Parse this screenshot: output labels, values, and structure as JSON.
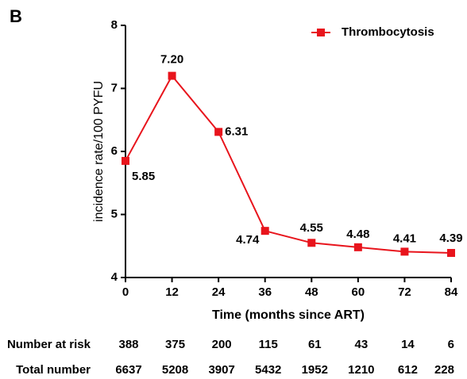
{
  "panel_label": "B",
  "chart_data": {
    "type": "line",
    "x_label": "Time (months since ART)",
    "y_label": "incidence rate/100 PYFU",
    "x": [
      0,
      12,
      24,
      36,
      48,
      60,
      72,
      84
    ],
    "series": [
      {
        "name": "Thrombocytosis",
        "color": "#e8141c",
        "values": [
          5.85,
          7.2,
          6.31,
          4.74,
          4.55,
          4.48,
          4.41,
          4.39
        ],
        "value_labels": [
          "5.85",
          "7.20",
          "6.31",
          "4.74",
          "4.55",
          "4.48",
          "4.41",
          "4.39"
        ]
      }
    ],
    "xlim": [
      0,
      84
    ],
    "xticks": [
      0,
      12,
      24,
      36,
      48,
      60,
      72,
      84
    ],
    "ylim": [
      4,
      8
    ],
    "yticks": [
      4,
      5,
      6,
      7,
      8
    ],
    "legend": "top-right"
  },
  "risk_table": {
    "rows": [
      {
        "label": "Number at risk",
        "values": [
          388,
          375,
          200,
          115,
          61,
          43,
          14,
          6
        ]
      },
      {
        "label": "Total number",
        "values": [
          6637,
          5208,
          3907,
          5432,
          1952,
          1210,
          612,
          228
        ]
      }
    ]
  }
}
